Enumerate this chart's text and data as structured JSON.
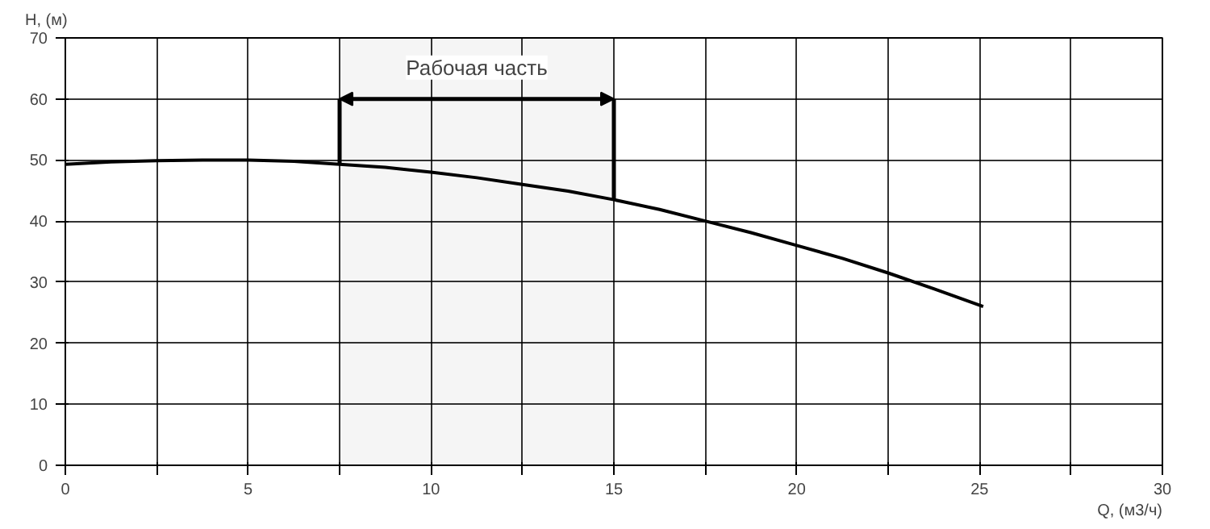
{
  "chart_data": {
    "type": "line",
    "xlabel": "Q, (м3/ч)",
    "ylabel": "H, (м)",
    "x": [
      0,
      1.25,
      2.5,
      3.75,
      5,
      6.25,
      7.5,
      8.75,
      10,
      11.25,
      12.5,
      13.75,
      15,
      16.25,
      17.5,
      18.75,
      20,
      21.25,
      22.5,
      23.75,
      25.1
    ],
    "series": [
      {
        "color": "#000000",
        "values": [
          49.3,
          49.7,
          49.9,
          50,
          50,
          49.8,
          49.3,
          48.8,
          48,
          47.1,
          46,
          44.9,
          43.5,
          41.9,
          40,
          38.1,
          36,
          33.9,
          31.5,
          28.9,
          26
        ]
      }
    ],
    "xlim": [
      0,
      30
    ],
    "ylim": [
      0,
      70
    ],
    "xticks": [
      0,
      {
        "value": 2.5,
        "label": null
      },
      5,
      {
        "value": 7.5,
        "label": null
      },
      10,
      {
        "value": 12.5,
        "label": null
      },
      15,
      {
        "value": 17.5,
        "label": null
      },
      20,
      {
        "value": 22.5,
        "label": null
      },
      25,
      {
        "value": 27.5,
        "label": null
      },
      30
    ],
    "yticks": [
      0,
      10,
      20,
      30,
      40,
      50,
      60,
      70
    ],
    "grid": true,
    "marker": "none",
    "line_style": "solid",
    "bands": [
      {
        "axis": "x",
        "from": 7.5,
        "to": 15,
        "label": "Рабочая часть",
        "color": "#000000"
      }
    ]
  }
}
